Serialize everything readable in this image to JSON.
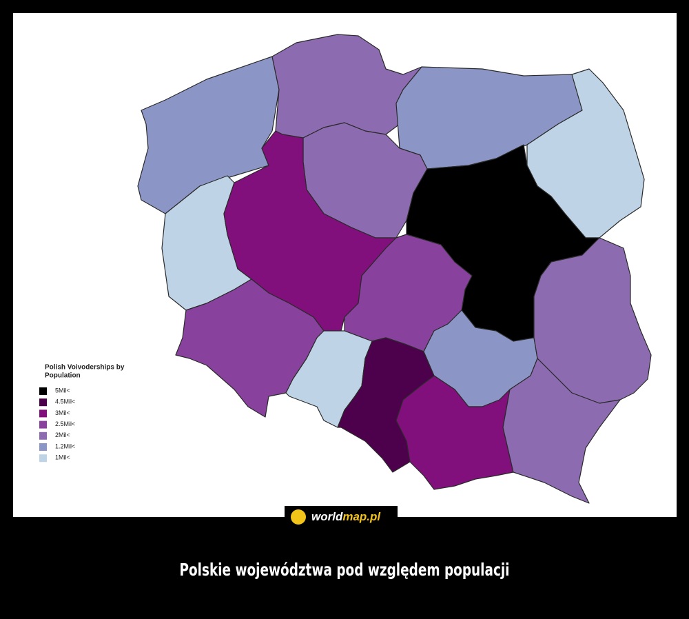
{
  "legend": {
    "title": [
      "Polish Voivoderships by",
      "Population"
    ],
    "items": [
      {
        "label": "5Mil<",
        "color": "#000000"
      },
      {
        "label": "4.5Mil<",
        "color": "#4d004b"
      },
      {
        "label": "3Mil<",
        "color": "#810f7c"
      },
      {
        "label": "2.5Mil<",
        "color": "#88419d"
      },
      {
        "label": "2Mil<",
        "color": "#8c6bb1"
      },
      {
        "label": "1.2Mil<",
        "color": "#8c96c6"
      },
      {
        "label": "1Mil<",
        "color": "#bfd3e6"
      }
    ]
  },
  "logo": [
    "world",
    "map.pl"
  ],
  "caption": "Polskie województwa pod względem populacji"
}
